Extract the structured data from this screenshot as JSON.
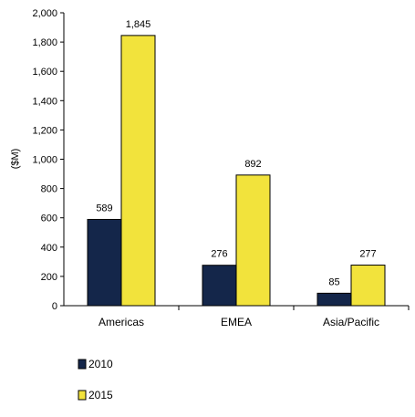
{
  "chart_data": {
    "type": "bar",
    "title": "",
    "xlabel": "",
    "ylabel": "($M)",
    "ylim": [
      0,
      2000
    ],
    "yticks": [
      0,
      200,
      400,
      600,
      800,
      1000,
      1200,
      1400,
      1600,
      1800,
      2000
    ],
    "ytick_labels": [
      "0",
      "200",
      "400",
      "600",
      "800",
      "1,000",
      "1,200",
      "1,400",
      "1,600",
      "1,800",
      "2,000"
    ],
    "categories": [
      "Americas",
      "EMEA",
      "Asia/Pacific"
    ],
    "series": [
      {
        "name": "2010",
        "color": "#14264a",
        "values": [
          589,
          276,
          85
        ],
        "value_labels": [
          "589",
          "276",
          "85"
        ]
      },
      {
        "name": "2015",
        "color": "#f2e33c",
        "values": [
          1845,
          892,
          277
        ],
        "value_labels": [
          "1,845",
          "892",
          "277"
        ]
      }
    ],
    "grid": false,
    "legend": "bottom-left"
  }
}
